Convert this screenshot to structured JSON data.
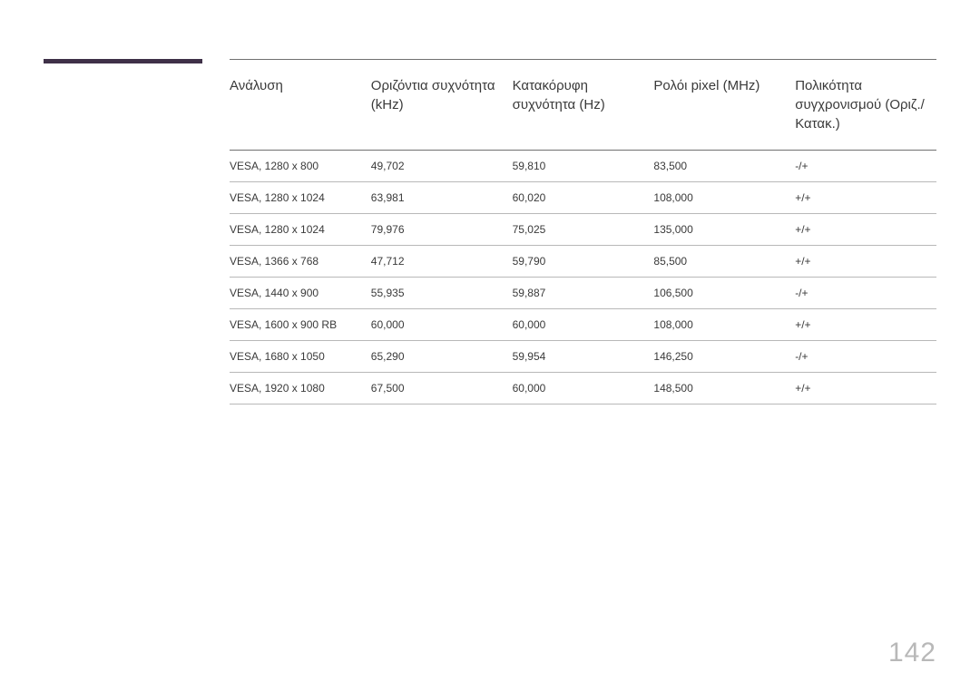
{
  "page_number": "142",
  "accent_bar_color": "#3f3148",
  "table": {
    "columns": [
      "Ανάλυση",
      "Οριζόντια συχνότητα (kHz)",
      "Κατακόρυφη συχνότητα (Hz)",
      "Ρολόι pixel (MHz)",
      "Πολικότητα συγχρονισμού (Οριζ./Κατακ.)"
    ],
    "rows": [
      [
        "VESA, 1280 x 800",
        "49,702",
        "59,810",
        "83,500",
        "-/+"
      ],
      [
        "VESA, 1280 x 1024",
        "63,981",
        "60,020",
        "108,000",
        "+/+"
      ],
      [
        "VESA, 1280 x 1024",
        "79,976",
        "75,025",
        "135,000",
        "+/+"
      ],
      [
        "VESA, 1366 x 768",
        "47,712",
        "59,790",
        "85,500",
        "+/+"
      ],
      [
        "VESA, 1440 x 900",
        "55,935",
        "59,887",
        "106,500",
        "-/+"
      ],
      [
        "VESA, 1600 x 900 RB",
        "60,000",
        "60,000",
        "108,000",
        "+/+"
      ],
      [
        "VESA, 1680 x 1050",
        "65,290",
        "59,954",
        "146,250",
        "-/+"
      ],
      [
        "VESA, 1920 x 1080",
        "67,500",
        "60,000",
        "148,500",
        "+/+"
      ]
    ]
  },
  "styling": {
    "background_color": "#ffffff",
    "text_color": "#3a3a3a",
    "header_border_color": "#707070",
    "row_border_color": "#b8b8b8",
    "page_number_color": "#b8b8b8",
    "header_fontsize": 15,
    "cell_fontsize": 12,
    "page_number_fontsize": 30
  }
}
